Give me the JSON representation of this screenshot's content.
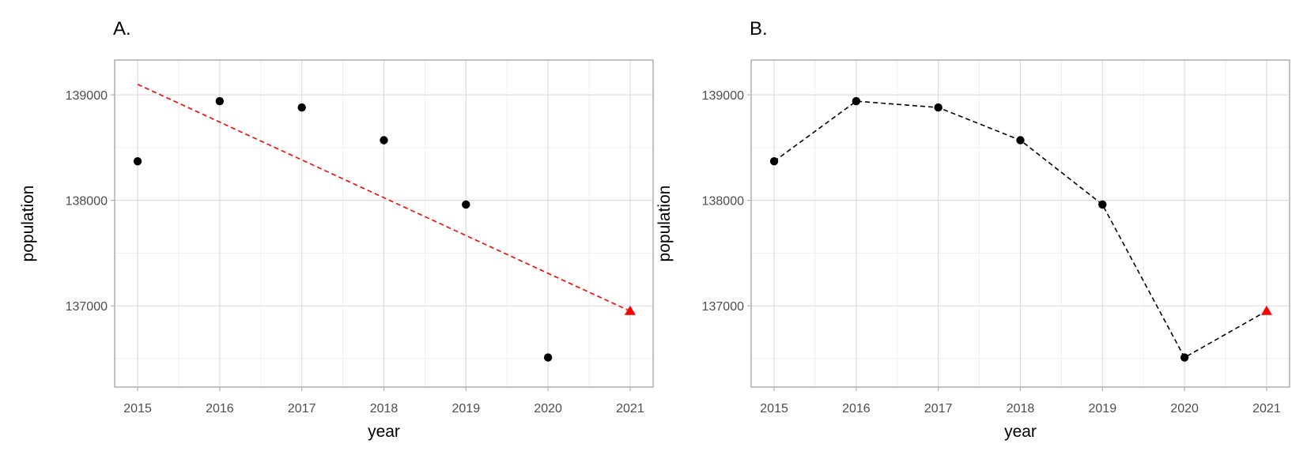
{
  "chart_data": [
    {
      "panel_title": "A.",
      "type": "scatter",
      "xlabel": "year",
      "ylabel": "population",
      "x_ticks": [
        2015,
        2016,
        2017,
        2018,
        2019,
        2020,
        2021
      ],
      "y_ticks": [
        137000,
        138000,
        139000
      ],
      "xlim": [
        2014.72,
        2021.28
      ],
      "ylim": [
        136230,
        139330
      ],
      "grid": true,
      "points": [
        {
          "x": 2015,
          "y": 138370
        },
        {
          "x": 2016,
          "y": 138940
        },
        {
          "x": 2017,
          "y": 138880
        },
        {
          "x": 2018,
          "y": 138570
        },
        {
          "x": 2019,
          "y": 137960
        },
        {
          "x": 2020,
          "y": 136510
        }
      ],
      "forecast_point": {
        "x": 2021,
        "y": 136950,
        "color": "#ff0000",
        "shape": "triangle"
      },
      "trend_line": {
        "x": [
          2015,
          2021
        ],
        "y": [
          139100,
          136950
        ],
        "color": "#ff0000",
        "dash": true
      },
      "connect_points": false
    },
    {
      "panel_title": "B.",
      "type": "line",
      "xlabel": "year",
      "ylabel": "population",
      "x_ticks": [
        2015,
        2016,
        2017,
        2018,
        2019,
        2020,
        2021
      ],
      "y_ticks": [
        137000,
        138000,
        139000
      ],
      "xlim": [
        2014.72,
        2021.28
      ],
      "ylim": [
        136230,
        139330
      ],
      "grid": true,
      "points": [
        {
          "x": 2015,
          "y": 138370
        },
        {
          "x": 2016,
          "y": 138940
        },
        {
          "x": 2017,
          "y": 138880
        },
        {
          "x": 2018,
          "y": 138570
        },
        {
          "x": 2019,
          "y": 137960
        },
        {
          "x": 2020,
          "y": 136510
        }
      ],
      "forecast_point": {
        "x": 2021,
        "y": 136950,
        "color": "#ff0000",
        "shape": "triangle"
      },
      "trend_line": null,
      "connect_points": true,
      "line_color": "#000000"
    }
  ]
}
